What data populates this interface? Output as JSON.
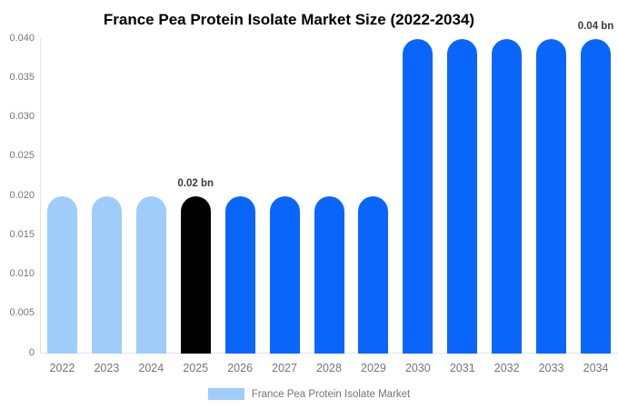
{
  "chart_data": {
    "type": "bar",
    "title": "France Pea Protein Isolate Market Size (2022-2034)",
    "xlabel": "",
    "ylabel": "",
    "unit": "bn",
    "categories": [
      "2022",
      "2023",
      "2024",
      "2025",
      "2026",
      "2027",
      "2028",
      "2029",
      "2030",
      "2031",
      "2032",
      "2033",
      "2034"
    ],
    "values": [
      0.02,
      0.02,
      0.02,
      0.02,
      0.02,
      0.02,
      0.02,
      0.02,
      0.04,
      0.04,
      0.04,
      0.04,
      0.04
    ],
    "bar_colors": [
      "#a0ccfa",
      "#a0ccfa",
      "#a0ccfa",
      "#000000",
      "#0a66fa",
      "#0a66fa",
      "#0a66fa",
      "#0a66fa",
      "#0a66fa",
      "#0a66fa",
      "#0a66fa",
      "#0a66fa",
      "#0a66fa"
    ],
    "annotations": [
      {
        "category": "2025",
        "text": "0.02 bn"
      },
      {
        "category": "2034",
        "text": "0.04 bn"
      }
    ],
    "ylim": [
      0,
      0.04
    ],
    "ytick_step": 0.005,
    "ytick_labels": [
      "0",
      "0.005",
      "0.010",
      "0.015",
      "0.020",
      "0.025",
      "0.030",
      "0.035",
      "0.040"
    ],
    "grid": false,
    "legend": {
      "position": "bottom",
      "label": "France Pea Protein Isolate Market",
      "swatch_color": "#a0ccfa"
    },
    "colors": {
      "series_current": "#0a66fa",
      "series_past": "#a0ccfa",
      "series_highlight": "#000000",
      "axis_line": "#e3e3e3",
      "tick_text": "#757575",
      "annotation_text": "#3b3b3b",
      "title_text": "#000000",
      "background": "#ffffff"
    }
  }
}
